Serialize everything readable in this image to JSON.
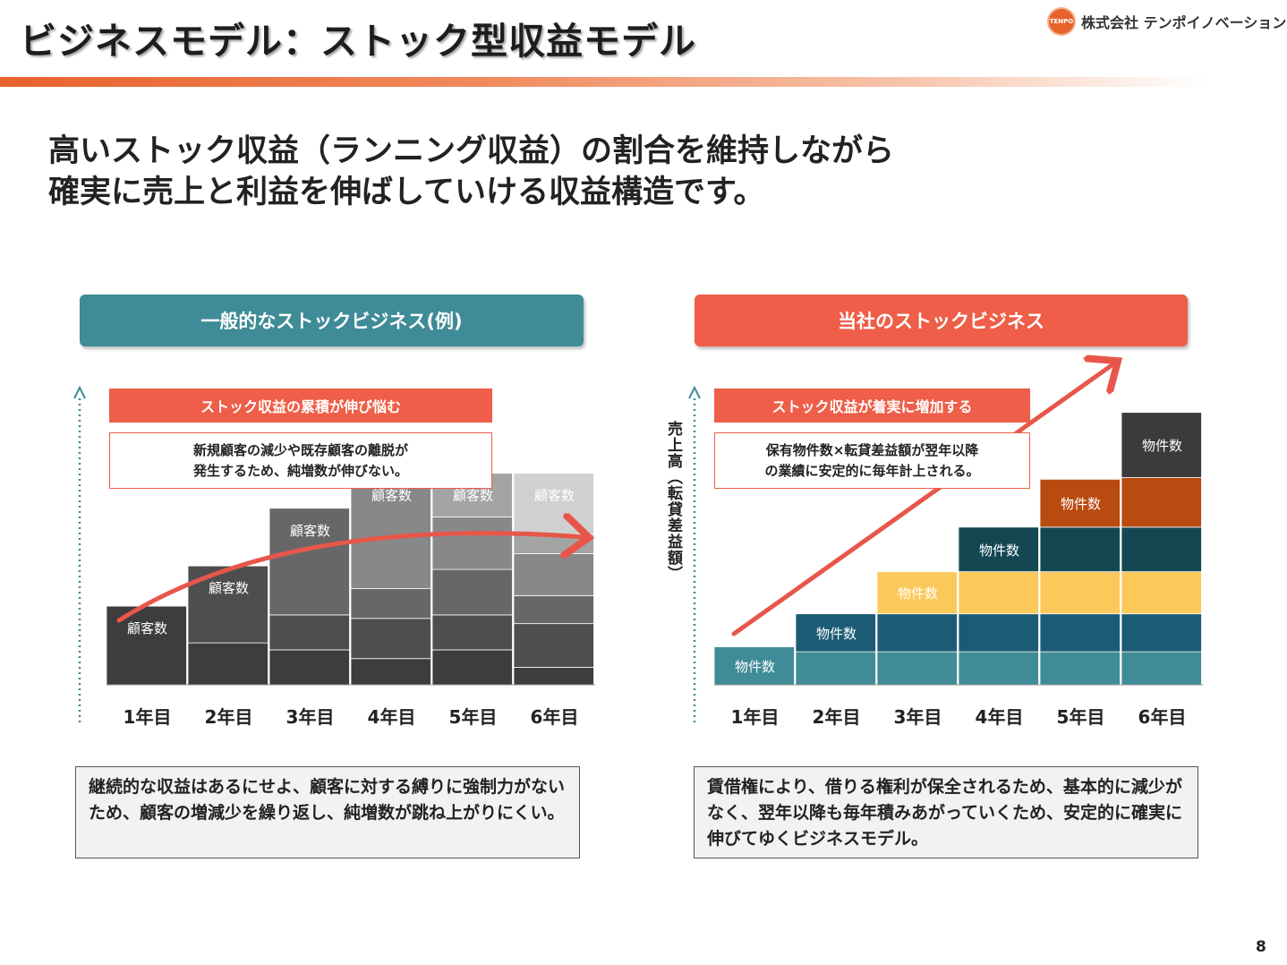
{
  "header": {
    "title": "ビジネスモデル：ストック型収益モデル",
    "logo_mark": "TENPO",
    "company": "株式会社 テンポイノベーション"
  },
  "lead": {
    "line1": "高いストック収益（ランニング収益）の割合を維持しながら",
    "line2": "確実に売上と利益を伸ばしていける収益構造です。"
  },
  "left_panel": {
    "header": "一般的なストックビジネス(例)",
    "callout_title": "ストック収益の累積が伸び悩む",
    "callout_line1": "新規顧客の減少や既存顧客の離脱が",
    "callout_line2": "発生するため、純増数が伸びない。",
    "note": "継続的な収益はあるにせよ、顧客に対する縛りに強制力がないため、顧客の増減少を繰り返し、純増数が跳ね上がりにくい。"
  },
  "right_panel": {
    "header": "当社のストックビジネス",
    "callout_title": "ストック収益が着実に増加する",
    "callout_line1": "保有物件数×転貸差益額が翌年以降",
    "callout_line2": "の業績に安定的に毎年計上される。",
    "y_axis_label": "売上高（転貸差益額）",
    "note": "賃借権により、借りる権利が保全されるため、基本的に減少がなく、翌年以降も毎年積みあがっていくため、安定的に確実に伸びてゆくビジネスモデル。"
  },
  "chart_data": [
    {
      "type": "bar",
      "stacked": true,
      "title": "一般的なストックビジネス(例)",
      "categories": [
        "1年目",
        "2年目",
        "3年目",
        "4年目",
        "5年目",
        "6年目"
      ],
      "bar_label": "顧客数",
      "values": [
        45,
        68,
        101,
        121,
        121,
        121
      ],
      "series": [
        {
          "name": "1年目",
          "color": "#3d3d3d",
          "values": [
            45,
            24,
            20,
            15,
            20,
            10
          ]
        },
        {
          "name": "2年目",
          "color": "#4e4e4e",
          "values": [
            0,
            44,
            20,
            23,
            20,
            25
          ]
        },
        {
          "name": "3年目",
          "color": "#676767",
          "values": [
            0,
            0,
            61,
            17,
            26,
            16
          ]
        },
        {
          "name": "4年目",
          "color": "#888888",
          "values": [
            0,
            0,
            0,
            66,
            30,
            24
          ]
        },
        {
          "name": "5年目",
          "color": "#a4a4a4",
          "values": [
            0,
            0,
            0,
            0,
            25,
            11
          ]
        },
        {
          "name": "6年目",
          "color": "#d0d0d0",
          "values": [
            0,
            0,
            0,
            0,
            0,
            35
          ]
        }
      ],
      "trend": "growth flattens",
      "ylim": [
        0,
        170
      ]
    },
    {
      "type": "bar",
      "stacked": true,
      "title": "当社のストックビジネス",
      "categories": [
        "1年目",
        "2年目",
        "3年目",
        "4年目",
        "5年目",
        "6年目"
      ],
      "bar_label": "物件数",
      "ylabel": "売上高（転貸差益額）",
      "values": [
        46,
        86,
        137,
        191,
        249,
        330
      ],
      "series": [
        {
          "name": "1年目",
          "color": "#3f8b97",
          "values": [
            46,
            40,
            40,
            40,
            40,
            40
          ]
        },
        {
          "name": "2年目",
          "color": "#1b5c74",
          "values": [
            0,
            46,
            46,
            46,
            46,
            46
          ]
        },
        {
          "name": "3年目",
          "color": "#fbc95a",
          "values": [
            0,
            0,
            51,
            51,
            51,
            51
          ]
        },
        {
          "name": "4年目",
          "color": "#134852",
          "values": [
            0,
            0,
            0,
            54,
            54,
            54
          ]
        },
        {
          "name": "5年目",
          "color": "#b94a10",
          "values": [
            0,
            0,
            0,
            0,
            58,
            60
          ]
        },
        {
          "name": "6年目",
          "color": "#3b3b3b",
          "values": [
            0,
            0,
            0,
            0,
            0,
            79
          ]
        }
      ],
      "trend": "steady linear growth",
      "ylim": [
        0,
        360
      ]
    }
  ],
  "page_number": "8"
}
